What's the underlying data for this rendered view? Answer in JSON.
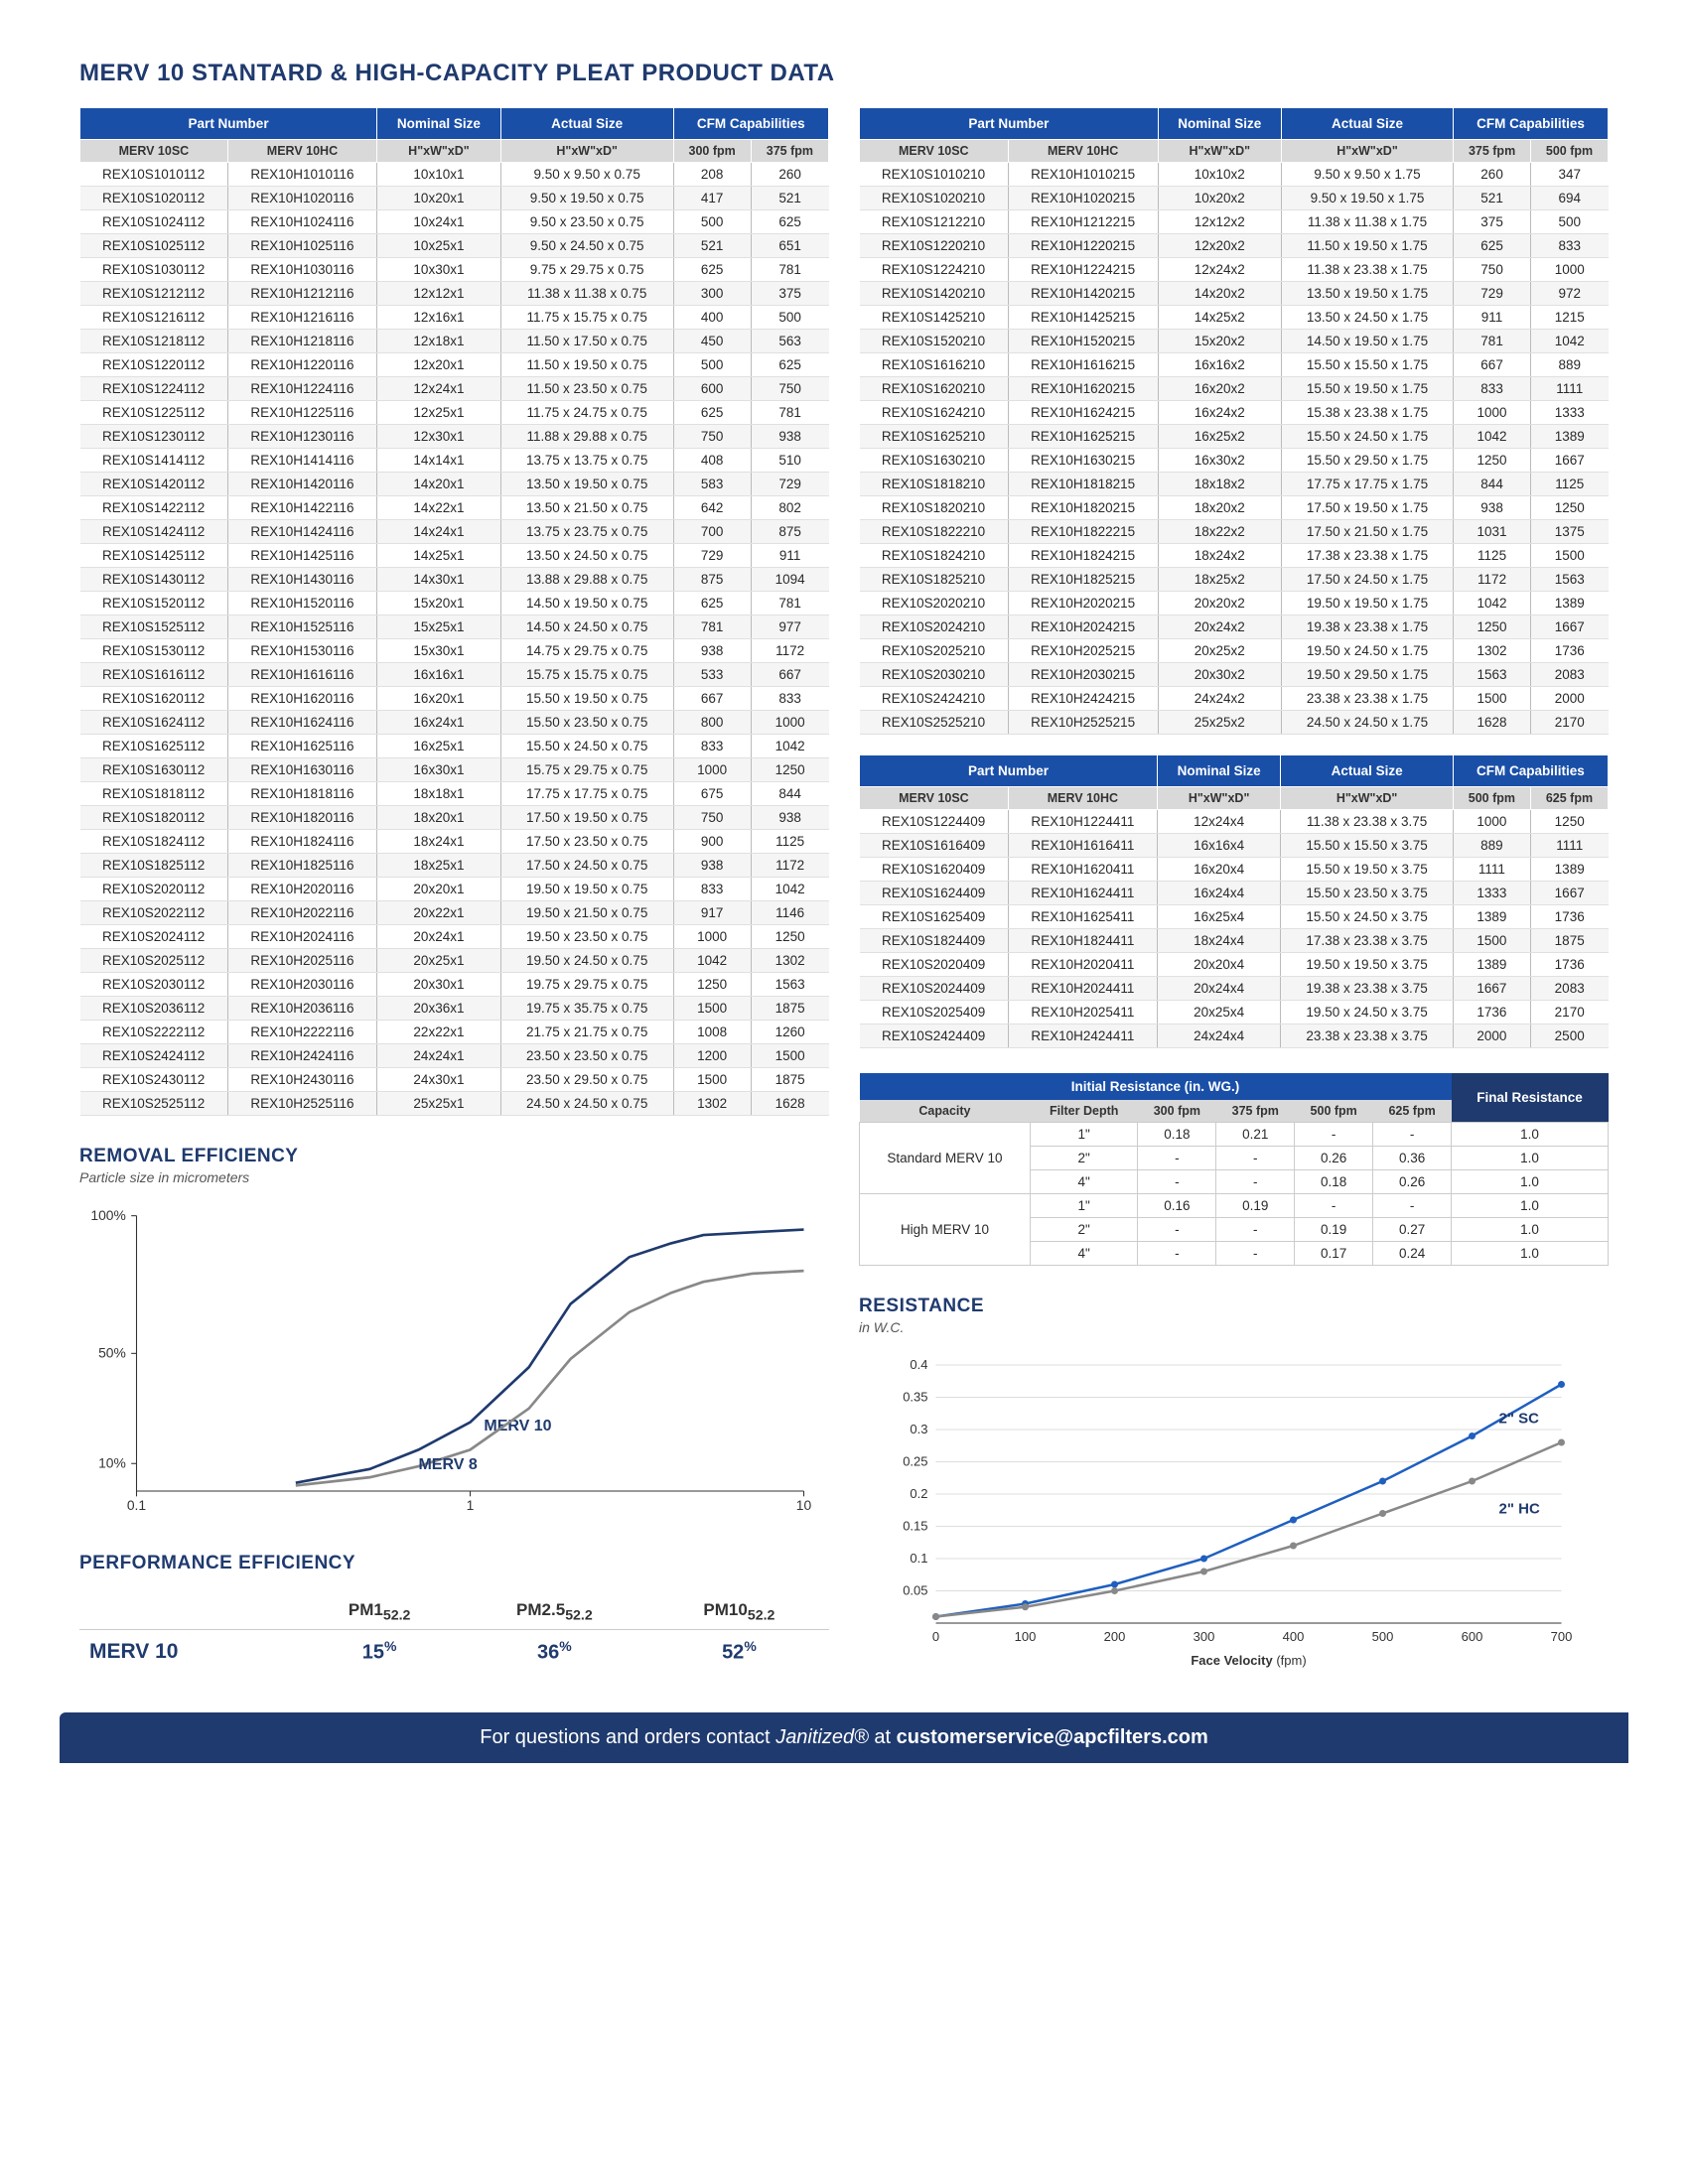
{
  "title": "MERV 10 STANTARD & HIGH-CAPACITY PLEAT PRODUCT DATA",
  "colors": {
    "header_bg": "#1a4fa8",
    "accent": "#1f3a6e",
    "grey": "#d9d9d9"
  },
  "product_headers": {
    "main": [
      "Part Number",
      "Nominal Size",
      "Actual Size",
      "CFM Capabilities"
    ],
    "sub_left": [
      "MERV 10SC",
      "MERV 10HC",
      "H\"xW\"xD\"",
      "H\"xW\"xD\"",
      "300 fpm",
      "375 fpm"
    ],
    "sub_mid": [
      "MERV 10SC",
      "MERV 10HC",
      "H\"xW\"xD\"",
      "H\"xW\"xD\"",
      "375 fpm",
      "500 fpm"
    ],
    "sub_right": [
      "MERV 10SC",
      "MERV 10HC",
      "H\"xW\"xD\"",
      "H\"xW\"xD\"",
      "500 fpm",
      "625 fpm"
    ]
  },
  "table1": [
    [
      "REX10S1010112",
      "REX10H1010116",
      "10x10x1",
      "9.50 x 9.50 x 0.75",
      "208",
      "260"
    ],
    [
      "REX10S1020112",
      "REX10H1020116",
      "10x20x1",
      "9.50 x 19.50 x 0.75",
      "417",
      "521"
    ],
    [
      "REX10S1024112",
      "REX10H1024116",
      "10x24x1",
      "9.50 x 23.50 x 0.75",
      "500",
      "625"
    ],
    [
      "REX10S1025112",
      "REX10H1025116",
      "10x25x1",
      "9.50 x 24.50 x 0.75",
      "521",
      "651"
    ],
    [
      "REX10S1030112",
      "REX10H1030116",
      "10x30x1",
      "9.75 x 29.75 x 0.75",
      "625",
      "781"
    ],
    [
      "REX10S1212112",
      "REX10H1212116",
      "12x12x1",
      "11.38 x 11.38 x 0.75",
      "300",
      "375"
    ],
    [
      "REX10S1216112",
      "REX10H1216116",
      "12x16x1",
      "11.75 x 15.75 x 0.75",
      "400",
      "500"
    ],
    [
      "REX10S1218112",
      "REX10H1218116",
      "12x18x1",
      "11.50 x 17.50 x 0.75",
      "450",
      "563"
    ],
    [
      "REX10S1220112",
      "REX10H1220116",
      "12x20x1",
      "11.50 x 19.50 x 0.75",
      "500",
      "625"
    ],
    [
      "REX10S1224112",
      "REX10H1224116",
      "12x24x1",
      "11.50 x 23.50 x 0.75",
      "600",
      "750"
    ],
    [
      "REX10S1225112",
      "REX10H1225116",
      "12x25x1",
      "11.75 x 24.75 x 0.75",
      "625",
      "781"
    ],
    [
      "REX10S1230112",
      "REX10H1230116",
      "12x30x1",
      "11.88 x 29.88 x 0.75",
      "750",
      "938"
    ],
    [
      "REX10S1414112",
      "REX10H1414116",
      "14x14x1",
      "13.75 x 13.75 x 0.75",
      "408",
      "510"
    ],
    [
      "REX10S1420112",
      "REX10H1420116",
      "14x20x1",
      "13.50 x 19.50 x 0.75",
      "583",
      "729"
    ],
    [
      "REX10S1422112",
      "REX10H1422116",
      "14x22x1",
      "13.50 x 21.50 x 0.75",
      "642",
      "802"
    ],
    [
      "REX10S1424112",
      "REX10H1424116",
      "14x24x1",
      "13.75 x 23.75 x 0.75",
      "700",
      "875"
    ],
    [
      "REX10S1425112",
      "REX10H1425116",
      "14x25x1",
      "13.50 x 24.50 x 0.75",
      "729",
      "911"
    ],
    [
      "REX10S1430112",
      "REX10H1430116",
      "14x30x1",
      "13.88 x 29.88 x 0.75",
      "875",
      "1094"
    ],
    [
      "REX10S1520112",
      "REX10H1520116",
      "15x20x1",
      "14.50 x 19.50 x 0.75",
      "625",
      "781"
    ],
    [
      "REX10S1525112",
      "REX10H1525116",
      "15x25x1",
      "14.50 x 24.50 x 0.75",
      "781",
      "977"
    ],
    [
      "REX10S1530112",
      "REX10H1530116",
      "15x30x1",
      "14.75 x 29.75 x 0.75",
      "938",
      "1172"
    ],
    [
      "REX10S1616112",
      "REX10H1616116",
      "16x16x1",
      "15.75 x 15.75 x 0.75",
      "533",
      "667"
    ],
    [
      "REX10S1620112",
      "REX10H1620116",
      "16x20x1",
      "15.50 x 19.50 x 0.75",
      "667",
      "833"
    ],
    [
      "REX10S1624112",
      "REX10H1624116",
      "16x24x1",
      "15.50 x 23.50 x 0.75",
      "800",
      "1000"
    ],
    [
      "REX10S1625112",
      "REX10H1625116",
      "16x25x1",
      "15.50 x 24.50 x 0.75",
      "833",
      "1042"
    ],
    [
      "REX10S1630112",
      "REX10H1630116",
      "16x30x1",
      "15.75 x 29.75 x 0.75",
      "1000",
      "1250"
    ],
    [
      "REX10S1818112",
      "REX10H1818116",
      "18x18x1",
      "17.75 x 17.75 x 0.75",
      "675",
      "844"
    ],
    [
      "REX10S1820112",
      "REX10H1820116",
      "18x20x1",
      "17.50 x 19.50 x 0.75",
      "750",
      "938"
    ],
    [
      "REX10S1824112",
      "REX10H1824116",
      "18x24x1",
      "17.50 x 23.50 x 0.75",
      "900",
      "1125"
    ],
    [
      "REX10S1825112",
      "REX10H1825116",
      "18x25x1",
      "17.50 x 24.50 x 0.75",
      "938",
      "1172"
    ],
    [
      "REX10S2020112",
      "REX10H2020116",
      "20x20x1",
      "19.50 x 19.50 x 0.75",
      "833",
      "1042"
    ],
    [
      "REX10S2022112",
      "REX10H2022116",
      "20x22x1",
      "19.50 x 21.50 x 0.75",
      "917",
      "1146"
    ],
    [
      "REX10S2024112",
      "REX10H2024116",
      "20x24x1",
      "19.50 x 23.50 x 0.75",
      "1000",
      "1250"
    ],
    [
      "REX10S2025112",
      "REX10H2025116",
      "20x25x1",
      "19.50 x 24.50 x 0.75",
      "1042",
      "1302"
    ],
    [
      "REX10S2030112",
      "REX10H2030116",
      "20x30x1",
      "19.75 x 29.75 x 0.75",
      "1250",
      "1563"
    ],
    [
      "REX10S2036112",
      "REX10H2036116",
      "20x36x1",
      "19.75 x 35.75 x 0.75",
      "1500",
      "1875"
    ],
    [
      "REX10S2222112",
      "REX10H2222116",
      "22x22x1",
      "21.75 x 21.75 x 0.75",
      "1008",
      "1260"
    ],
    [
      "REX10S2424112",
      "REX10H2424116",
      "24x24x1",
      "23.50 x 23.50 x 0.75",
      "1200",
      "1500"
    ],
    [
      "REX10S2430112",
      "REX10H2430116",
      "24x30x1",
      "23.50 x 29.50 x 0.75",
      "1500",
      "1875"
    ],
    [
      "REX10S2525112",
      "REX10H2525116",
      "25x25x1",
      "24.50 x 24.50 x 0.75",
      "1302",
      "1628"
    ]
  ],
  "table2": [
    [
      "REX10S1010210",
      "REX10H1010215",
      "10x10x2",
      "9.50 x 9.50 x 1.75",
      "260",
      "347"
    ],
    [
      "REX10S1020210",
      "REX10H1020215",
      "10x20x2",
      "9.50 x 19.50 x 1.75",
      "521",
      "694"
    ],
    [
      "REX10S1212210",
      "REX10H1212215",
      "12x12x2",
      "11.38 x 11.38 x 1.75",
      "375",
      "500"
    ],
    [
      "REX10S1220210",
      "REX10H1220215",
      "12x20x2",
      "11.50 x 19.50 x 1.75",
      "625",
      "833"
    ],
    [
      "REX10S1224210",
      "REX10H1224215",
      "12x24x2",
      "11.38 x 23.38 x 1.75",
      "750",
      "1000"
    ],
    [
      "REX10S1420210",
      "REX10H1420215",
      "14x20x2",
      "13.50 x 19.50 x 1.75",
      "729",
      "972"
    ],
    [
      "REX10S1425210",
      "REX10H1425215",
      "14x25x2",
      "13.50 x 24.50 x 1.75",
      "911",
      "1215"
    ],
    [
      "REX10S1520210",
      "REX10H1520215",
      "15x20x2",
      "14.50 x 19.50 x 1.75",
      "781",
      "1042"
    ],
    [
      "REX10S1616210",
      "REX10H1616215",
      "16x16x2",
      "15.50 x 15.50 x 1.75",
      "667",
      "889"
    ],
    [
      "REX10S1620210",
      "REX10H1620215",
      "16x20x2",
      "15.50 x 19.50 x 1.75",
      "833",
      "1111"
    ],
    [
      "REX10S1624210",
      "REX10H1624215",
      "16x24x2",
      "15.38 x 23.38 x 1.75",
      "1000",
      "1333"
    ],
    [
      "REX10S1625210",
      "REX10H1625215",
      "16x25x2",
      "15.50 x 24.50 x 1.75",
      "1042",
      "1389"
    ],
    [
      "REX10S1630210",
      "REX10H1630215",
      "16x30x2",
      "15.50 x 29.50 x 1.75",
      "1250",
      "1667"
    ],
    [
      "REX10S1818210",
      "REX10H1818215",
      "18x18x2",
      "17.75 x 17.75 x 1.75",
      "844",
      "1125"
    ],
    [
      "REX10S1820210",
      "REX10H1820215",
      "18x20x2",
      "17.50 x 19.50 x 1.75",
      "938",
      "1250"
    ],
    [
      "REX10S1822210",
      "REX10H1822215",
      "18x22x2",
      "17.50 x 21.50 x 1.75",
      "1031",
      "1375"
    ],
    [
      "REX10S1824210",
      "REX10H1824215",
      "18x24x2",
      "17.38 x 23.38 x 1.75",
      "1125",
      "1500"
    ],
    [
      "REX10S1825210",
      "REX10H1825215",
      "18x25x2",
      "17.50 x 24.50 x 1.75",
      "1172",
      "1563"
    ],
    [
      "REX10S2020210",
      "REX10H2020215",
      "20x20x2",
      "19.50 x 19.50 x 1.75",
      "1042",
      "1389"
    ],
    [
      "REX10S2024210",
      "REX10H2024215",
      "20x24x2",
      "19.38 x 23.38 x 1.75",
      "1250",
      "1667"
    ],
    [
      "REX10S2025210",
      "REX10H2025215",
      "20x25x2",
      "19.50 x 24.50 x 1.75",
      "1302",
      "1736"
    ],
    [
      "REX10S2030210",
      "REX10H2030215",
      "20x30x2",
      "19.50 x 29.50 x 1.75",
      "1563",
      "2083"
    ],
    [
      "REX10S2424210",
      "REX10H2424215",
      "24x24x2",
      "23.38 x 23.38 x 1.75",
      "1500",
      "2000"
    ],
    [
      "REX10S2525210",
      "REX10H2525215",
      "25x25x2",
      "24.50 x 24.50 x 1.75",
      "1628",
      "2170"
    ]
  ],
  "table3": [
    [
      "REX10S1224409",
      "REX10H1224411",
      "12x24x4",
      "11.38 x 23.38 x 3.75",
      "1000",
      "1250"
    ],
    [
      "REX10S1616409",
      "REX10H1616411",
      "16x16x4",
      "15.50 x 15.50 x 3.75",
      "889",
      "1111"
    ],
    [
      "REX10S1620409",
      "REX10H1620411",
      "16x20x4",
      "15.50 x 19.50 x 3.75",
      "1111",
      "1389"
    ],
    [
      "REX10S1624409",
      "REX10H1624411",
      "16x24x4",
      "15.50 x 23.50 x 3.75",
      "1333",
      "1667"
    ],
    [
      "REX10S1625409",
      "REX10H1625411",
      "16x25x4",
      "15.50 x 24.50 x 3.75",
      "1389",
      "1736"
    ],
    [
      "REX10S1824409",
      "REX10H1824411",
      "18x24x4",
      "17.38 x 23.38 x 3.75",
      "1500",
      "1875"
    ],
    [
      "REX10S2020409",
      "REX10H2020411",
      "20x20x4",
      "19.50 x 19.50 x 3.75",
      "1389",
      "1736"
    ],
    [
      "REX10S2024409",
      "REX10H2024411",
      "20x24x4",
      "19.38 x 23.38 x 3.75",
      "1667",
      "2083"
    ],
    [
      "REX10S2025409",
      "REX10H2025411",
      "20x25x4",
      "19.50 x 24.50 x 3.75",
      "1736",
      "2170"
    ],
    [
      "REX10S2424409",
      "REX10H2424411",
      "24x24x4",
      "23.38 x 23.38 x 3.75",
      "2000",
      "2500"
    ]
  ],
  "removal_title": "REMOVAL EFFICIENCY",
  "removal_sub": "Particle size in micrometers",
  "removal_chart": {
    "type": "line",
    "xscale": "log",
    "xlim": [
      0.1,
      10
    ],
    "ylim": [
      0,
      100
    ],
    "xticks": [
      0.1,
      1,
      10
    ],
    "yticks": [
      10,
      50,
      100
    ],
    "series": [
      {
        "name": "MERV 10",
        "color": "#1f3a6e",
        "points": [
          [
            0.3,
            3
          ],
          [
            0.5,
            8
          ],
          [
            0.7,
            15
          ],
          [
            1,
            25
          ],
          [
            1.5,
            45
          ],
          [
            2,
            68
          ],
          [
            3,
            85
          ],
          [
            4,
            90
          ],
          [
            5,
            93
          ],
          [
            7,
            94
          ],
          [
            10,
            95
          ]
        ]
      },
      {
        "name": "MERV 8",
        "color": "#888888",
        "points": [
          [
            0.3,
            2
          ],
          [
            0.5,
            5
          ],
          [
            0.7,
            9
          ],
          [
            1,
            15
          ],
          [
            1.5,
            30
          ],
          [
            2,
            48
          ],
          [
            3,
            65
          ],
          [
            4,
            72
          ],
          [
            5,
            76
          ],
          [
            7,
            79
          ],
          [
            10,
            80
          ]
        ]
      }
    ],
    "series_labels": {
      "MERV 10": {
        "x": 1.1,
        "y": 22
      },
      "MERV 8": {
        "x": 0.7,
        "y": 8
      }
    }
  },
  "perf_title": "PERFORMANCE EFFICIENCY",
  "perf_table": {
    "headers": [
      "",
      "PM1₅₂.₂",
      "PM2.5₅₂.₂",
      "PM10₅₂.₂"
    ],
    "row": [
      "MERV 10",
      "15%",
      "36%",
      "52%"
    ]
  },
  "resist_init_title": "Initial Resistance (in. WG.)",
  "resist_final_title": "Final Resistance",
  "resist_table": {
    "sub_headers": [
      "Capacity",
      "Filter Depth",
      "300 fpm",
      "375 fpm",
      "500 fpm",
      "625 fpm"
    ],
    "rows": [
      [
        "Standard MERV 10",
        "1\"",
        "0.18",
        "0.21",
        "-",
        "-",
        "1.0"
      ],
      [
        "",
        "2\"",
        "-",
        "-",
        "0.26",
        "0.36",
        "1.0"
      ],
      [
        "",
        "4\"",
        "-",
        "-",
        "0.18",
        "0.26",
        "1.0"
      ],
      [
        "High MERV 10",
        "1\"",
        "0.16",
        "0.19",
        "-",
        "-",
        "1.0"
      ],
      [
        "",
        "2\"",
        "-",
        "-",
        "0.19",
        "0.27",
        "1.0"
      ],
      [
        "",
        "4\"",
        "-",
        "-",
        "0.17",
        "0.24",
        "1.0"
      ]
    ]
  },
  "resistance_title": "RESISTANCE",
  "resistance_sub": "in W.C.",
  "resistance_chart": {
    "type": "line",
    "xlim": [
      0,
      700
    ],
    "ylim": [
      0,
      0.4
    ],
    "xticks": [
      0,
      100,
      200,
      300,
      400,
      500,
      600,
      700
    ],
    "yticks": [
      0.05,
      0.1,
      0.15,
      0.2,
      0.25,
      0.3,
      0.35,
      0.4
    ],
    "xlabel": "Face Velocity (fpm)",
    "series": [
      {
        "name": "2\" SC",
        "color": "#1f5fbf",
        "points": [
          [
            0,
            0.01
          ],
          [
            100,
            0.03
          ],
          [
            200,
            0.06
          ],
          [
            300,
            0.1
          ],
          [
            400,
            0.16
          ],
          [
            500,
            0.22
          ],
          [
            600,
            0.29
          ],
          [
            700,
            0.37
          ]
        ]
      },
      {
        "name": "2\" HC",
        "color": "#888888",
        "points": [
          [
            0,
            0.01
          ],
          [
            100,
            0.025
          ],
          [
            200,
            0.05
          ],
          [
            300,
            0.08
          ],
          [
            400,
            0.12
          ],
          [
            500,
            0.17
          ],
          [
            600,
            0.22
          ],
          [
            700,
            0.28
          ]
        ]
      }
    ],
    "series_labels": {
      "2\" SC": {
        "x": 630,
        "y": 0.31
      },
      "2\" HC": {
        "x": 630,
        "y": 0.17
      }
    }
  },
  "footer": {
    "pre": "For questions and orders contact ",
    "brand": "Janitized®",
    "mid": " at ",
    "email": "customerservice@apcfilters.com"
  }
}
